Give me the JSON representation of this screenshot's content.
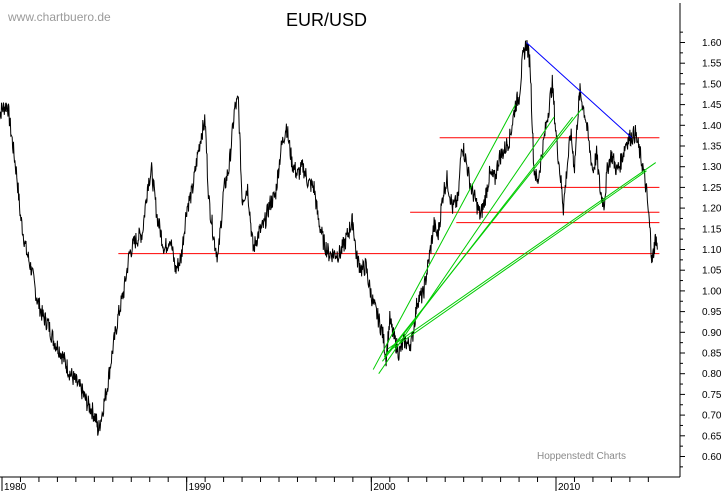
{
  "chart_data": {
    "type": "line",
    "title": "EUR/USD",
    "watermark": "www.chartbuero.de",
    "source": "Hoppenstedt Charts",
    "x_range": [
      1979.8,
      2015.6
    ],
    "ylim": [
      0.55,
      1.66
    ],
    "y_ticks": [
      "0.60",
      "0.65",
      "0.70",
      "0.75",
      "0.80",
      "0.85",
      "0.90",
      "0.95",
      "1.00",
      "1.05",
      "1.10",
      "1.15",
      "1.20",
      "1.25",
      "1.30",
      "1.35",
      "1.40",
      "1.45",
      "1.50",
      "1.55",
      "1.60"
    ],
    "x_ticks": [
      "1980",
      "1990",
      "2000",
      "2010"
    ],
    "colors": {
      "price": "#000000",
      "support": "#ff0000",
      "fan": "#00cc00",
      "downtrend": "#0000ff",
      "axis": "#000000"
    },
    "series": [
      {
        "values": [
          [
            1979.8,
            1.42
          ],
          [
            1980.0,
            1.44
          ],
          [
            1980.3,
            1.45
          ],
          [
            1980.5,
            1.38
          ],
          [
            1980.8,
            1.28
          ],
          [
            1981.0,
            1.18
          ],
          [
            1981.3,
            1.1
          ],
          [
            1981.6,
            1.05
          ],
          [
            1981.9,
            0.98
          ],
          [
            1982.2,
            0.94
          ],
          [
            1982.5,
            0.92
          ],
          [
            1982.8,
            0.88
          ],
          [
            1983.1,
            0.86
          ],
          [
            1983.4,
            0.83
          ],
          [
            1983.7,
            0.8
          ],
          [
            1984.0,
            0.78
          ],
          [
            1984.3,
            0.76
          ],
          [
            1984.6,
            0.73
          ],
          [
            1984.9,
            0.71
          ],
          [
            1985.1,
            0.69
          ],
          [
            1985.2,
            0.66
          ],
          [
            1985.4,
            0.7
          ],
          [
            1985.7,
            0.77
          ],
          [
            1986.0,
            0.86
          ],
          [
            1986.3,
            0.94
          ],
          [
            1986.6,
            1.0
          ],
          [
            1986.9,
            1.09
          ],
          [
            1987.2,
            1.12
          ],
          [
            1987.6,
            1.14
          ],
          [
            1987.9,
            1.26
          ],
          [
            1988.1,
            1.29
          ],
          [
            1988.4,
            1.18
          ],
          [
            1988.8,
            1.1
          ],
          [
            1989.1,
            1.13
          ],
          [
            1989.4,
            1.05
          ],
          [
            1989.7,
            1.08
          ],
          [
            1990.0,
            1.2
          ],
          [
            1990.3,
            1.24
          ],
          [
            1990.6,
            1.33
          ],
          [
            1990.8,
            1.38
          ],
          [
            1991.0,
            1.41
          ],
          [
            1991.2,
            1.22
          ],
          [
            1991.5,
            1.12
          ],
          [
            1991.7,
            1.08
          ],
          [
            1992.0,
            1.24
          ],
          [
            1992.3,
            1.3
          ],
          [
            1992.6,
            1.44
          ],
          [
            1992.8,
            1.46
          ],
          [
            1993.0,
            1.22
          ],
          [
            1993.3,
            1.25
          ],
          [
            1993.6,
            1.1
          ],
          [
            1993.9,
            1.14
          ],
          [
            1994.2,
            1.16
          ],
          [
            1994.5,
            1.21
          ],
          [
            1994.8,
            1.23
          ],
          [
            1995.1,
            1.34
          ],
          [
            1995.4,
            1.4
          ],
          [
            1995.7,
            1.31
          ],
          [
            1996.0,
            1.28
          ],
          [
            1996.3,
            1.3
          ],
          [
            1996.6,
            1.26
          ],
          [
            1996.9,
            1.25
          ],
          [
            1997.1,
            1.18
          ],
          [
            1997.4,
            1.12
          ],
          [
            1997.7,
            1.09
          ],
          [
            1998.0,
            1.09
          ],
          [
            1998.3,
            1.09
          ],
          [
            1998.6,
            1.12
          ],
          [
            1998.9,
            1.16
          ],
          [
            1999.0,
            1.17
          ],
          [
            1999.2,
            1.08
          ],
          [
            1999.5,
            1.05
          ],
          [
            1999.7,
            1.06
          ],
          [
            1999.9,
            1.01
          ],
          [
            2000.1,
            0.97
          ],
          [
            2000.4,
            0.93
          ],
          [
            2000.6,
            0.9
          ],
          [
            2000.8,
            0.84
          ],
          [
            2001.0,
            0.93
          ],
          [
            2001.2,
            0.89
          ],
          [
            2001.5,
            0.85
          ],
          [
            2001.8,
            0.88
          ],
          [
            2002.0,
            0.87
          ],
          [
            2002.2,
            0.88
          ],
          [
            2002.5,
            0.98
          ],
          [
            2002.8,
            0.99
          ],
          [
            2003.1,
            1.07
          ],
          [
            2003.4,
            1.16
          ],
          [
            2003.6,
            1.13
          ],
          [
            2003.9,
            1.24
          ],
          [
            2004.1,
            1.27
          ],
          [
            2004.4,
            1.2
          ],
          [
            2004.7,
            1.22
          ],
          [
            2004.9,
            1.36
          ],
          [
            2005.1,
            1.32
          ],
          [
            2005.4,
            1.25
          ],
          [
            2005.7,
            1.21
          ],
          [
            2005.9,
            1.18
          ],
          [
            2006.1,
            1.21
          ],
          [
            2006.4,
            1.28
          ],
          [
            2006.7,
            1.27
          ],
          [
            2006.9,
            1.32
          ],
          [
            2007.2,
            1.34
          ],
          [
            2007.5,
            1.37
          ],
          [
            2007.8,
            1.45
          ],
          [
            2008.0,
            1.47
          ],
          [
            2008.2,
            1.56
          ],
          [
            2008.4,
            1.6
          ],
          [
            2008.6,
            1.55
          ],
          [
            2008.8,
            1.3
          ],
          [
            2009.0,
            1.26
          ],
          [
            2009.2,
            1.32
          ],
          [
            2009.5,
            1.41
          ],
          [
            2009.8,
            1.5
          ],
          [
            2010.0,
            1.38
          ],
          [
            2010.3,
            1.25
          ],
          [
            2010.4,
            1.2
          ],
          [
            2010.6,
            1.3
          ],
          [
            2010.8,
            1.38
          ],
          [
            2011.0,
            1.3
          ],
          [
            2011.2,
            1.44
          ],
          [
            2011.3,
            1.48
          ],
          [
            2011.6,
            1.42
          ],
          [
            2011.8,
            1.35
          ],
          [
            2012.0,
            1.29
          ],
          [
            2012.2,
            1.33
          ],
          [
            2012.4,
            1.24
          ],
          [
            2012.6,
            1.21
          ],
          [
            2012.8,
            1.3
          ],
          [
            2013.0,
            1.33
          ],
          [
            2013.3,
            1.29
          ],
          [
            2013.5,
            1.31
          ],
          [
            2013.8,
            1.36
          ],
          [
            2014.0,
            1.37
          ],
          [
            2014.3,
            1.38
          ],
          [
            2014.5,
            1.34
          ],
          [
            2014.7,
            1.3
          ],
          [
            2014.9,
            1.24
          ],
          [
            2015.1,
            1.14
          ],
          [
            2015.2,
            1.07
          ],
          [
            2015.3,
            1.1
          ],
          [
            2015.4,
            1.13
          ],
          [
            2015.5,
            1.1
          ]
        ]
      }
    ],
    "horizontal_lines": [
      {
        "y": 1.09,
        "x": [
          1986.3,
          2015.6
        ]
      },
      {
        "y": 1.19,
        "x": [
          2002.1,
          2015.6
        ]
      },
      {
        "y": 1.165,
        "x": [
          2004.6,
          2015.6
        ]
      },
      {
        "y": 1.25,
        "x": [
          2008.6,
          2015.6
        ]
      },
      {
        "y": 1.37,
        "x": [
          2003.7,
          2015.6
        ]
      }
    ],
    "fan_lines": [
      {
        "from": [
          2000.1,
          0.81
        ],
        "to": [
          2007.8,
          1.45
        ]
      },
      {
        "from": [
          2000.4,
          0.8
        ],
        "to": [
          2009.9,
          1.42
        ]
      },
      {
        "from": [
          2000.6,
          0.83
        ],
        "to": [
          2010.9,
          1.42
        ]
      },
      {
        "from": [
          2000.7,
          0.84
        ],
        "to": [
          2011.4,
          1.44
        ]
      },
      {
        "from": [
          2000.8,
          0.85
        ],
        "to": [
          2014.9,
          1.29
        ]
      },
      {
        "from": [
          2000.9,
          0.86
        ],
        "to": [
          2015.4,
          1.31
        ]
      }
    ],
    "trend_line": {
      "from": [
        2008.4,
        1.6
      ],
      "to": [
        2014.1,
        1.37
      ]
    }
  }
}
